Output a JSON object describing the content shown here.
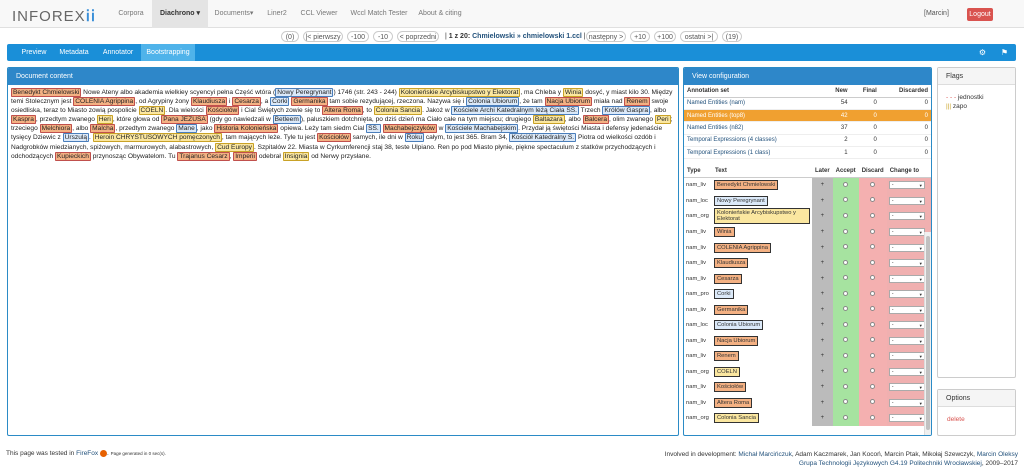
{
  "nav": {
    "logo_left": "INFOREX",
    "logo_icon": "ii-icon",
    "items": [
      {
        "label": "Corpora"
      },
      {
        "label": "Diachrono ▾"
      },
      {
        "label": "Documents▾"
      },
      {
        "label": "Liner2"
      },
      {
        "label": "CCL Viewer"
      },
      {
        "label": "Wccl Match Tester"
      },
      {
        "label": "About & citing"
      }
    ],
    "user": "[Marcin]",
    "logout": "Logout"
  },
  "pager": {
    "count_left": "(0)",
    "first": "|< pierwszy",
    "m100": "-100",
    "m10": "-10",
    "prev": "< poprzedni",
    "pos": "1 z 20:",
    "crumb": "Chmielowski » chmielowski 1.ccl",
    "next": "następny >",
    "p10": "+10",
    "p100": "+100",
    "last": "ostatni >|",
    "count_right": "(19)"
  },
  "subnav": {
    "tabs": [
      "Preview",
      "Metadata",
      "Annotator",
      "Bootstrapping"
    ]
  },
  "doc_panel": {
    "title": "Document content"
  },
  "view_panel": {
    "title": "View configuration",
    "cols": [
      "Annotation set",
      "New",
      "Final",
      "Discarded"
    ],
    "rows": [
      [
        "Named Entities (nam)",
        "54",
        "0",
        "0"
      ],
      [
        "Named Entities (top8)",
        "42",
        "0",
        "0"
      ],
      [
        "Named Entities (n82)",
        "37",
        "0",
        "0"
      ],
      [
        "Temporal Expressions (4 classes)",
        "2",
        "0",
        "0"
      ],
      [
        "Temporal Expressions (1 class)",
        "1",
        "0",
        "0"
      ]
    ]
  },
  "ent_table": {
    "cols": [
      "Type",
      "Text",
      "Later",
      "Accept",
      "Discard",
      "Change to"
    ],
    "rows": [
      [
        "nam_liv",
        "Benedykt Chmielowski",
        "liv"
      ],
      [
        "nam_loc",
        "Nowy Peregrynant",
        "loc"
      ],
      [
        "nam_org",
        "Kolonieńskie Arcybiskupstwo y Elektorat",
        "org"
      ],
      [
        "nam_liv",
        "Winia",
        "liv"
      ],
      [
        "nam_liv",
        "COLENIA Agrippina",
        "liv"
      ],
      [
        "nam_liv",
        "Klaudiusza",
        "liv"
      ],
      [
        "nam_liv",
        "Cesarza",
        "liv"
      ],
      [
        "nam_pro",
        "Corki",
        "loc"
      ],
      [
        "nam_liv",
        "Germanika",
        "liv"
      ],
      [
        "nam_loc",
        "Colonia Ubiorum",
        "loc"
      ],
      [
        "nam_liv",
        "Nacja Ubiorum",
        "liv"
      ],
      [
        "nam_liv",
        "Renem",
        "liv"
      ],
      [
        "nam_org",
        "COELN",
        "org"
      ],
      [
        "nam_liv",
        "Kościołów",
        "liv"
      ],
      [
        "nam_liv",
        "Altera Roma",
        "liv"
      ],
      [
        "nam_org",
        "Colonia Sancia",
        "org"
      ]
    ],
    "select": "-"
  },
  "flags": {
    "title": "Flags",
    "items": [
      "jednostki",
      "zapo"
    ]
  },
  "options": {
    "title": "Options",
    "delete": "delete"
  },
  "footer": {
    "left_a": "This page was tested in ",
    "left_b": "FireFox",
    "left_c": ". ",
    "left_small": "Page generated in 0 sec(s).",
    "right_a": "Involved in development: ",
    "right_b": "Michał Marcińczuk",
    "right_c": ", Adam Kaczmarek, Jan Kocoń, Marcin Ptak, Mikołaj Szewczyk, ",
    "right_d": "Marcin Oleksy",
    "right_e": "Grupa Technologii Językowych G4.19 Politechniki Wrocławskiej",
    "right_f": ", 2009–2017"
  },
  "doc": [
    [
      "liv",
      "Benedykt Chmielowski"
    ],
    [
      "t",
      " Nowe Ateny albo akademia wielkiey scyencyi pełna Część wtóra ("
    ],
    [
      "loc",
      "Nowy Peregrynant"
    ],
    [
      "t",
      ") 1746 (str. 243 - 244) "
    ],
    [
      "org",
      "Kolonieńskie Arcybiskupstwo y Elektorat"
    ],
    [
      "t",
      ", ma Chleba y "
    ],
    [
      "org",
      "Winia"
    ],
    [
      "t",
      " dosyć, y miast kilo 30. Między temi Stolecznym jest "
    ],
    [
      "liv",
      "COLENIA Agrippina"
    ],
    [
      "t",
      ", od Agrypiny żony "
    ],
    [
      "liv",
      "Klaudiusza"
    ],
    [
      "t",
      " i "
    ],
    [
      "liv",
      "Cesarza"
    ],
    [
      "t",
      ", a "
    ],
    [
      "loc",
      "Corki"
    ],
    [
      "t",
      " "
    ],
    [
      "liv",
      "Germanika"
    ],
    [
      "t",
      " tam sobie rezydującej, rzeczona. Nazywa się i "
    ],
    [
      "loc",
      "Colonia Ubiorum"
    ],
    [
      "t",
      ", że tam "
    ],
    [
      "liv",
      "Nacja Ubiorum"
    ],
    [
      "t",
      " miała nad "
    ],
    [
      "liv",
      "Renem"
    ],
    [
      "t",
      " swoje osiedliska, teraz to Miasto zowią pospolicie "
    ],
    [
      "org",
      "COELN"
    ],
    [
      "t",
      ". Dla wielości "
    ],
    [
      "liv",
      "Kościołów"
    ],
    [
      "t",
      " i Cial Świętych zowie się to "
    ],
    [
      "liv",
      "Altera Roma"
    ],
    [
      "t",
      ", to "
    ],
    [
      "org",
      "Colonia Sancia"
    ],
    [
      "t",
      ". Jakoż w "
    ],
    [
      "loc",
      "Kościele Archi Katedralnym leżą Ciała SS."
    ],
    [
      "t",
      " Trzech "
    ],
    [
      "loc",
      "Królów Gaspra"
    ],
    [
      "t",
      ", albo "
    ],
    [
      "liv",
      "Kaspra"
    ],
    [
      "t",
      ", przedtym zwanego "
    ],
    [
      "org",
      "Heri"
    ],
    [
      "t",
      ", które głowa od "
    ],
    [
      "liv",
      "Pana JEZUSA"
    ],
    [
      "t",
      " (gdy go nawiedzali w "
    ],
    [
      "loc",
      "Betleem"
    ],
    [
      "t",
      "), paluszkiem dotchnięta, po dziś dzień ma Ciało całe na tym miejscu; drugiego "
    ],
    [
      "org",
      "Baltazara"
    ],
    [
      "t",
      ", albo "
    ],
    [
      "liv",
      "Balcera"
    ],
    [
      "t",
      ", olim zwanego "
    ],
    [
      "org",
      "Peri"
    ],
    [
      "t",
      "; trzeciego "
    ],
    [
      "liv",
      "Melchiora"
    ],
    [
      "t",
      ", albo "
    ],
    [
      "liv",
      "Malcha"
    ],
    [
      "t",
      ", przedtym zwanego "
    ],
    [
      "loc",
      "Mane"
    ],
    [
      "t",
      ", jako "
    ],
    [
      "liv",
      "Historia Kolonieńska"
    ],
    [
      "t",
      " opiewa. Leży tam siedm Cial "
    ],
    [
      "loc",
      "SS."
    ],
    [
      "t",
      " "
    ],
    [
      "liv",
      "Machabejczyków"
    ],
    [
      "t",
      " w "
    ],
    [
      "loc",
      "Kościele Machabejskim"
    ],
    [
      "t",
      ". Przydał ją świętości Miasta i defensy jedenaście tysięcy Dziewic z "
    ],
    [
      "loc",
      "Urszulą"
    ],
    [
      "t",
      ". "
    ],
    [
      "org",
      "Heroin CHRYSTUSOWYCH pomęczonych"
    ],
    [
      "t",
      ", tam mających leże. Tyle tu jest "
    ],
    [
      "liv",
      "Kościołów"
    ],
    [
      "t",
      " samych, ile dni w "
    ],
    [
      "loc",
      "Roku"
    ],
    [
      "t",
      " całym, to jest 365. Bram 34, "
    ],
    [
      "loc",
      "Kościół Katedralny S."
    ],
    [
      "t",
      " Piotra od wielkości ozdób i Nadgrobków miedzianych, spiżowych, marmurowych, alabastrowych, "
    ],
    [
      "org",
      "Cud Europy"
    ],
    [
      "t",
      ". Szpitalów 22. Miasta w Cyrkumferencji staj 38, teste Ulpiano. Ren po pod Miasto płynie, piękne spectaculum z statków przychodzących i odchodzących "
    ],
    [
      "liv",
      "Kupieckich"
    ],
    [
      "t",
      " przynosząc Obywatelom. Tu "
    ],
    [
      "liv",
      "Trajanus Cesarz"
    ],
    [
      "t",
      ", "
    ],
    [
      "liv",
      "Imperii"
    ],
    [
      "t",
      " odebrał "
    ],
    [
      "org",
      "Insignia"
    ],
    [
      "t",
      " od Nerwy przysłane."
    ]
  ]
}
